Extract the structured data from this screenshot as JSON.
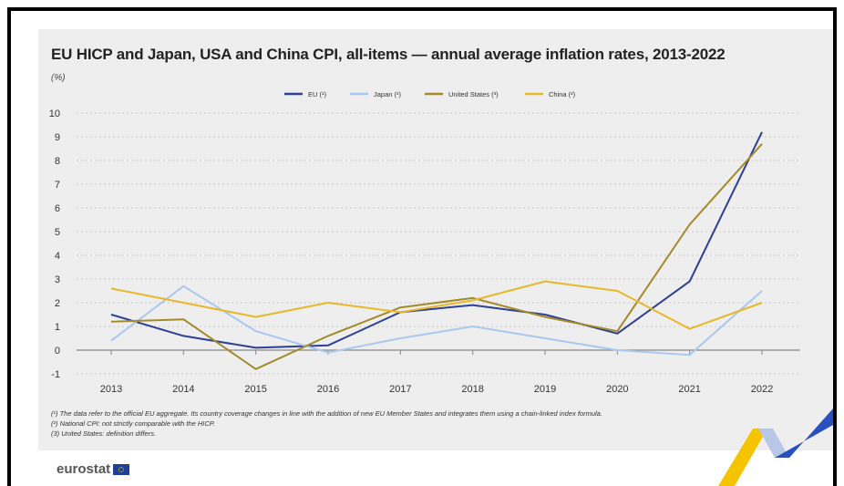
{
  "page": {
    "title": "EU HICP and Japan, USA and China CPI, all-items — annual average inflation rates, 2013-2022",
    "unit": "(%)",
    "footnotes": [
      "(¹) The data refer to the official EU aggregate. Its country coverage changes in line with the addition of new EU Member States and integrates them using a chain-linked index formula.",
      "(²) National CPI: not strictly comparable with the HICP.",
      "(3) United States: definition differs."
    ],
    "logo_text": "eurostat"
  },
  "chart_data": {
    "type": "line",
    "title": "EU HICP and Japan, USA and China CPI, all-items — annual average inflation rates, 2013-2022",
    "ylabel": "(%)",
    "xlabel": "",
    "categories": [
      "2013",
      "2014",
      "2015",
      "2016",
      "2017",
      "2018",
      "2019",
      "2020",
      "2021",
      "2022"
    ],
    "ylim": [
      -1,
      10
    ],
    "yticks": [
      "-1",
      "0",
      "1",
      "2",
      "3",
      "4",
      "5",
      "6",
      "7",
      "8",
      "9",
      "10"
    ],
    "grid": "horizontal dotted",
    "legend_position": "top",
    "series": [
      {
        "name": "EU (¹)",
        "color": "#2e3f95",
        "values": [
          1.5,
          0.6,
          0.1,
          0.2,
          1.6,
          1.9,
          1.5,
          0.7,
          2.9,
          9.2
        ]
      },
      {
        "name": "Japan (²)",
        "color": "#a9c8ef",
        "values": [
          0.4,
          2.7,
          0.8,
          -0.1,
          0.5,
          1.0,
          0.5,
          0.0,
          -0.2,
          2.5
        ]
      },
      {
        "name": "United States (³)",
        "color": "#a48a2a",
        "values": [
          1.2,
          1.3,
          -0.8,
          0.6,
          1.8,
          2.2,
          1.4,
          0.8,
          5.3,
          8.7
        ]
      },
      {
        "name": "China (²)",
        "color": "#e6b82a",
        "values": [
          2.6,
          2.0,
          1.4,
          2.0,
          1.6,
          2.1,
          2.9,
          2.5,
          0.9,
          2.0
        ]
      }
    ]
  }
}
